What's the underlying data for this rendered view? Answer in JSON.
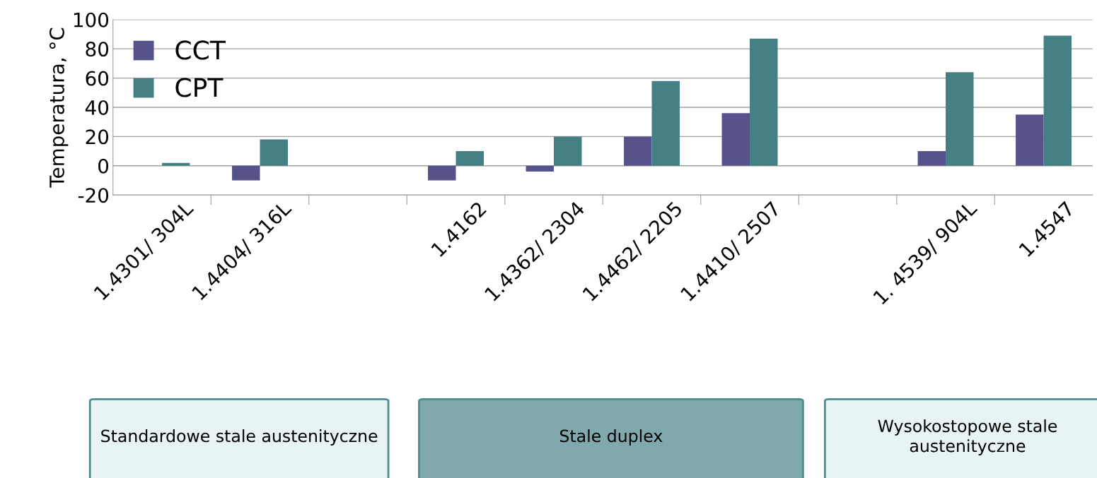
{
  "chart_data": {
    "type": "bar",
    "ylabel": "Temperatura, °C",
    "categories": [
      "1.4301/ 304L",
      "1.4404/ 316L",
      null,
      "1.4162",
      "1.4362/ 2304",
      "1.4462/ 2205",
      "1.4410/ 2507",
      null,
      "1. 4539/ 904L",
      "1.4547"
    ],
    "series": [
      {
        "name": "CCT",
        "color": "#56528a",
        "values": [
          null,
          -10,
          null,
          -10,
          -4,
          20,
          36,
          null,
          10,
          35
        ]
      },
      {
        "name": "CPT",
        "color": "#447f84",
        "values": [
          2,
          18,
          null,
          10,
          20,
          58,
          87,
          null,
          64,
          89
        ]
      }
    ],
    "ylim": [
      -20,
      100
    ],
    "yticks": [
      -20,
      0,
      20,
      40,
      60,
      80,
      100
    ],
    "grid": "y",
    "legend": "top left",
    "annotations": [
      "Standardowe stale austenityczne",
      "Stale duplex",
      "Wysokostopowe stale austenityczne"
    ]
  }
}
